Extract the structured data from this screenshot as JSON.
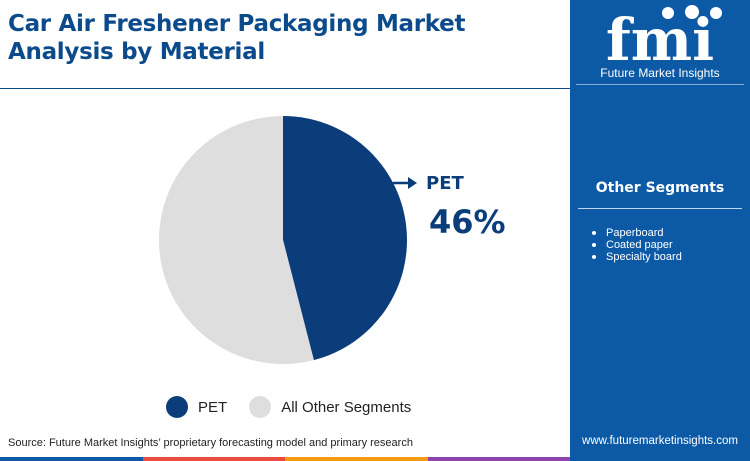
{
  "title": "Car Air Freshener Packaging Market Analysis by Material",
  "chart_data": {
    "type": "pie",
    "slices": [
      {
        "label": "PET",
        "value": 46,
        "color": "#0b3d7a"
      },
      {
        "label": "All Other Segments",
        "value": 54,
        "color": "#dedede"
      }
    ],
    "legend": [
      "PET",
      "All Other Segments"
    ],
    "legend_position": "bottom"
  },
  "callout": {
    "label": "PET",
    "value": "46%"
  },
  "side_panel": {
    "logo_letters": "fmi",
    "logo_subtitle": "Future Market Insights",
    "heading": "Other Segments",
    "items": [
      "Paperboard",
      "Coated paper",
      "Specialty board"
    ],
    "website": "www.futuremarketinsights.com"
  },
  "source": "Source: Future Market Insights’ proprietary forecasting model and primary research",
  "colors": {
    "primary": "#0b3d7a",
    "panel": "#0c5aa6",
    "other": "#dedede",
    "accent_bar": [
      "#0c5aa6",
      "#e74c3c",
      "#f39c12",
      "#8e44ad"
    ]
  }
}
